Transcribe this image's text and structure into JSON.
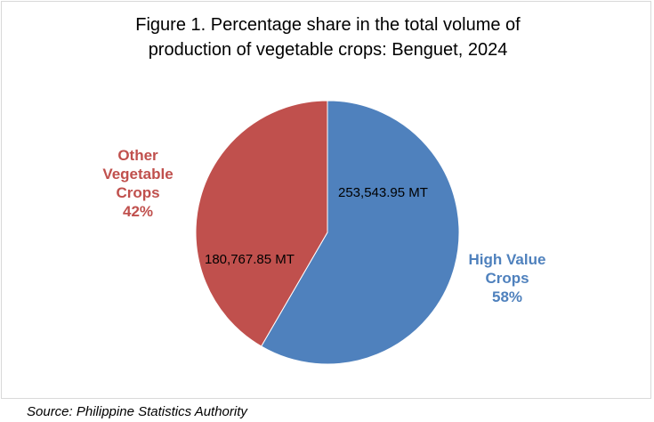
{
  "chart_data": {
    "type": "pie",
    "title_lines": [
      "Figure 1. Percentage share in the total volume of",
      "production of vegetable crops: Benguet, 2024"
    ],
    "slices": [
      {
        "name_lines": [
          "High Value",
          "Crops"
        ],
        "percent_label": "58%",
        "value": 253543.95,
        "value_label": "253,543.95 MT",
        "color": "#4f81bd"
      },
      {
        "name_lines": [
          "Other",
          "Vegetable",
          "Crops"
        ],
        "percent_label": "42%",
        "value": 180767.85,
        "value_label": "180,767.85 MT",
        "color": "#c0504d"
      }
    ],
    "start": "12 o'clock",
    "direction": "clockwise"
  },
  "source": "Source: Philippine Statistics Authority"
}
